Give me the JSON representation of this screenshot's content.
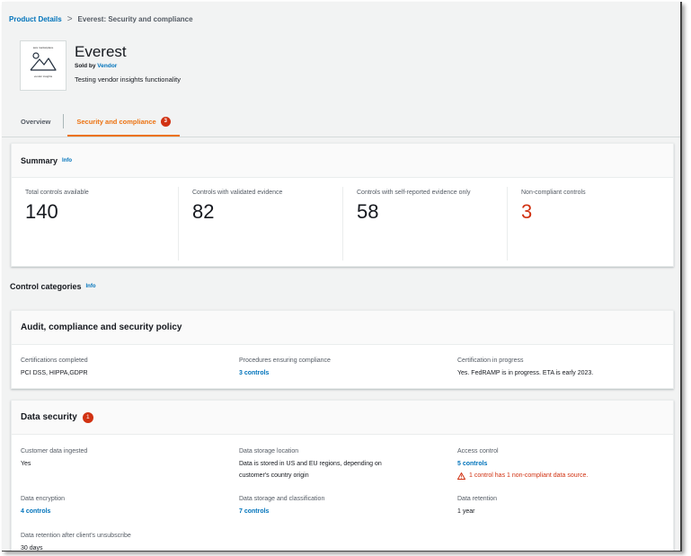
{
  "breadcrumb": {
    "parent": "Product Details",
    "separator": ">",
    "current": "Everest: Security and compliance"
  },
  "product": {
    "logo_top_text": "aws marketplace",
    "logo_bottom_text": "vendor insights",
    "name": "Everest",
    "sold_by_prefix": "Sold by",
    "vendor": "Vendor",
    "description": "Testing vendor insights functionality"
  },
  "tabs": [
    {
      "label": "Overview",
      "active": false
    },
    {
      "label": "Security and compliance",
      "active": true,
      "badge": "3"
    }
  ],
  "summary": {
    "title": "Summary",
    "info": "Info",
    "metrics": [
      {
        "label": "Total controls available",
        "value": "140"
      },
      {
        "label": "Controls with validated evidence",
        "value": "82"
      },
      {
        "label": "Controls with self-reported evidence only",
        "value": "58"
      },
      {
        "label": "Non-compliant controls",
        "value": "3"
      }
    ]
  },
  "control_categories": {
    "title": "Control categories",
    "info": "Info"
  },
  "audit": {
    "title": "Audit, compliance and security policy",
    "fields": [
      {
        "label": "Certifications completed",
        "value": "PCI DSS, HIPPA,GDPR"
      },
      {
        "label": "Procedures ensuring compliance",
        "value": "3 controls"
      },
      {
        "label": "Certification in progress",
        "value": "Yes. FedRAMP is in progress. ETA is early 2023."
      }
    ]
  },
  "data_security": {
    "title": "Data security",
    "badge": "1",
    "fields": {
      "ingested": {
        "label": "Customer data ingested",
        "value": "Yes"
      },
      "storage_location": {
        "label": "Data storage location",
        "value_line1": "Data is stored in US and EU regions, depending on",
        "value_line2": "customer's country origin"
      },
      "access_control": {
        "label": "Access control",
        "value": "5 controls",
        "warning": "1 control has 1 non-compliant data source."
      },
      "encryption": {
        "label": "Data encryption",
        "value": "4 controls"
      },
      "classification": {
        "label": "Data storage and classification",
        "value": "7 controls"
      },
      "retention": {
        "label": "Data retention",
        "value": "1 year"
      },
      "retention_unsubscribe": {
        "label": "Data retention after client's unsubscribe",
        "value": "30 days"
      }
    }
  },
  "colors": {
    "link": "#0073bb",
    "accent": "#ec7211",
    "danger": "#d13212",
    "text": "#16191f",
    "muted": "#545b64"
  }
}
